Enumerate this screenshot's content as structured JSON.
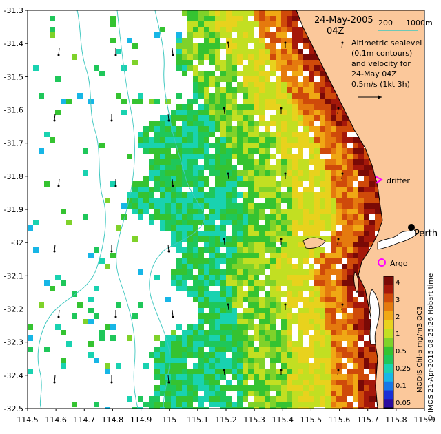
{
  "header": {
    "date": "24-May-2005",
    "time": "04Z"
  },
  "depth_legend": {
    "label_200": "200",
    "label_1000": "1000m",
    "line_color": "#40c8c0"
  },
  "description_lines": [
    "Altimetric sealevel",
    "(0.1m contours)",
    "and velocity for",
    "24-May 04Z",
    "0.5m/s (1kt 3h)"
  ],
  "markers": {
    "drifter": "drifter",
    "drifter_color": "#ff00ff",
    "argo": "Argo",
    "argo_color": "#ff00ff",
    "city": "Perth"
  },
  "axes": {
    "x_ticks": [
      "114.5",
      "114.6",
      "114.7",
      "114.8",
      "114.9",
      "115",
      "115.1",
      "115.2",
      "115.3",
      "115.4",
      "115.5",
      "115.6",
      "115.7",
      "115.8",
      "115.9"
    ],
    "y_ticks": [
      "-31.3",
      "-31.4",
      "-31.5",
      "-31.6",
      "-31.7",
      "-31.8",
      "-31.9",
      "-32",
      "-32.1",
      "-32.2",
      "-32.3",
      "-32.4",
      "-32.5"
    ]
  },
  "colorbar": {
    "ticks": [
      "4",
      "3",
      "2",
      "1",
      "0.5",
      "0.25",
      "0.1",
      "0.05"
    ],
    "title": "MODIS Chl-a mg/m3 OC3"
  },
  "credit": "© IMOS 21-Apr-2015 08:25:26 Hobart time",
  "colors": {
    "land": "#fbc89b",
    "coast_line": "#000000",
    "contour": "#40c8c0"
  },
  "chart_data": {
    "type": "heatmap",
    "xlim": [
      114.5,
      115.9
    ],
    "ylim": [
      -32.5,
      -31.3
    ],
    "colorbar_ticks": [
      4,
      3,
      2,
      1,
      0.5,
      0.25,
      0.1,
      0.05
    ]
  }
}
